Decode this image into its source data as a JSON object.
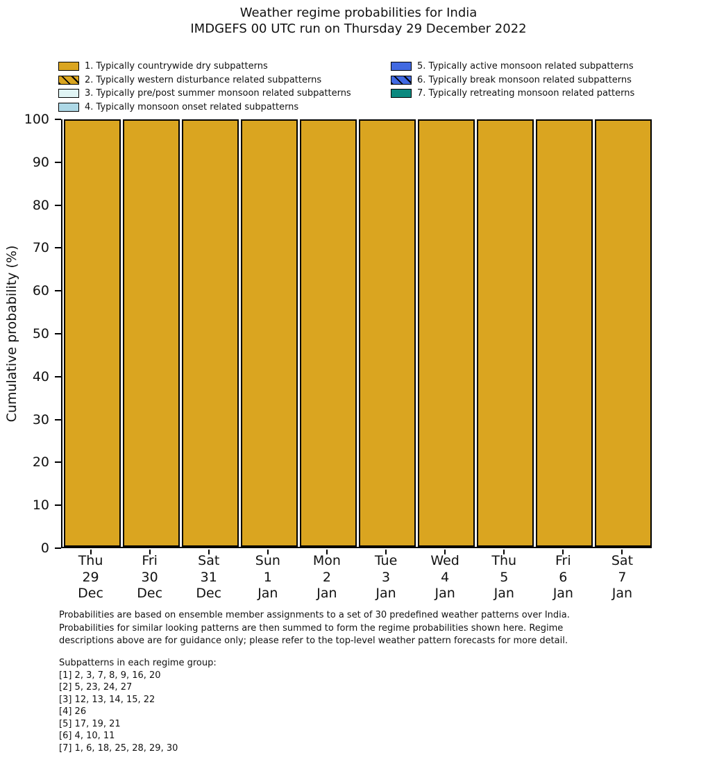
{
  "title": {
    "line1": "Weather regime probabilities for India",
    "line2": "IMDGEFS 00 UTC run on Thursday 29 December 2022"
  },
  "legend": {
    "left": [
      {
        "label": "1. Typically countrywide dry subpatterns",
        "color": "#DAA520",
        "hatch": false
      },
      {
        "label": "2. Typically western disturbance related subpatterns",
        "color": "#DAA520",
        "hatch": true
      },
      {
        "label": "3. Typically pre/post summer monsoon related subpatterns",
        "color": "#E0F4F4",
        "hatch": false
      },
      {
        "label": "4. Typically monsoon onset related subpatterns",
        "color": "#ADD8E6",
        "hatch": false
      }
    ],
    "right": [
      {
        "label": "5. Typically active monsoon related subpatterns",
        "color": "#4169E1",
        "hatch": false
      },
      {
        "label": "6. Typically break monsoon related subpatterns",
        "color": "#4169E1",
        "hatch": true
      },
      {
        "label": "7. Typically retreating monsoon related patterns",
        "color": "#0B897F",
        "hatch": false
      }
    ]
  },
  "y_axis": {
    "label": "Cumulative probability (%)",
    "ticks": [
      0,
      10,
      20,
      30,
      40,
      50,
      60,
      70,
      80,
      90,
      100
    ]
  },
  "x_axis": {
    "categories": [
      {
        "day": "Thu",
        "date": "29",
        "month": "Dec"
      },
      {
        "day": "Fri",
        "date": "30",
        "month": "Dec"
      },
      {
        "day": "Sat",
        "date": "31",
        "month": "Dec"
      },
      {
        "day": "Sun",
        "date": "1",
        "month": "Jan"
      },
      {
        "day": "Mon",
        "date": "2",
        "month": "Jan"
      },
      {
        "day": "Tue",
        "date": "3",
        "month": "Jan"
      },
      {
        "day": "Wed",
        "date": "4",
        "month": "Jan"
      },
      {
        "day": "Thu",
        "date": "5",
        "month": "Jan"
      },
      {
        "day": "Fri",
        "date": "6",
        "month": "Jan"
      },
      {
        "day": "Sat",
        "date": "7",
        "month": "Jan"
      }
    ]
  },
  "chart_data": {
    "type": "bar",
    "stacked": true,
    "title": "Weather regime probabilities for India",
    "subtitle": "IMDGEFS 00 UTC run on Thursday 29 December 2022",
    "xlabel": "",
    "ylabel": "Cumulative probability (%)",
    "ylim": [
      0,
      100
    ],
    "yticks": [
      0,
      10,
      20,
      30,
      40,
      50,
      60,
      70,
      80,
      90,
      100
    ],
    "grid": false,
    "legend_position": "top",
    "categories": [
      "Thu 29 Dec",
      "Fri 30 Dec",
      "Sat 31 Dec",
      "Sun 1 Jan",
      "Mon 2 Jan",
      "Tue 3 Jan",
      "Wed 4 Jan",
      "Thu 5 Jan",
      "Fri 6 Jan",
      "Sat 7 Jan"
    ],
    "series": [
      {
        "name": "1. Typically countrywide dry subpatterns",
        "color": "#DAA520",
        "hatch": false,
        "values": [
          100,
          100,
          100,
          100,
          100,
          100,
          100,
          100,
          100,
          100
        ]
      },
      {
        "name": "2. Typically western disturbance related subpatterns",
        "color": "#DAA520",
        "hatch": true,
        "values": [
          0,
          0,
          0,
          0,
          0,
          0,
          0,
          0,
          0,
          0
        ]
      },
      {
        "name": "3. Typically pre/post summer monsoon related subpatterns",
        "color": "#E0F4F4",
        "hatch": false,
        "values": [
          0,
          0,
          0,
          0,
          0,
          0,
          0,
          0,
          0,
          0
        ]
      },
      {
        "name": "4. Typically monsoon onset related subpatterns",
        "color": "#ADD8E6",
        "hatch": false,
        "values": [
          0,
          0,
          0,
          0,
          0,
          0,
          0,
          0,
          0,
          0
        ]
      },
      {
        "name": "5. Typically active monsoon related subpatterns",
        "color": "#4169E1",
        "hatch": false,
        "values": [
          0,
          0,
          0,
          0,
          0,
          0,
          0,
          0,
          0,
          0
        ]
      },
      {
        "name": "6. Typically break monsoon related subpatterns",
        "color": "#4169E1",
        "hatch": true,
        "values": [
          0,
          0,
          0,
          0,
          0,
          0,
          0,
          0,
          0,
          0
        ]
      },
      {
        "name": "7. Typically retreating monsoon related patterns",
        "color": "#0B897F",
        "hatch": false,
        "values": [
          0,
          0,
          0,
          0,
          0,
          0,
          0,
          0,
          0,
          0
        ]
      }
    ]
  },
  "footer": {
    "note_lines": [
      "Probabilities are based on ensemble member assignments to a set of 30 predefined weather patterns over India.",
      "Probabilities for similar looking patterns are then summed to form the regime probabilities shown here. Regime",
      "descriptions above are for guidance only; please refer to the top-level weather pattern forecasts for more detail."
    ],
    "subpattern_lines": [
      "Subpatterns in each regime group:",
      "[1] 2, 3, 7, 8, 9, 16, 20",
      "[2] 5, 23, 24, 27",
      "[3] 12, 13, 14, 15, 22",
      "[4] 26",
      "[5] 17, 19, 21",
      "[6] 4, 10, 11",
      "[7] 1, 6, 18, 25, 28, 29, 30"
    ]
  }
}
